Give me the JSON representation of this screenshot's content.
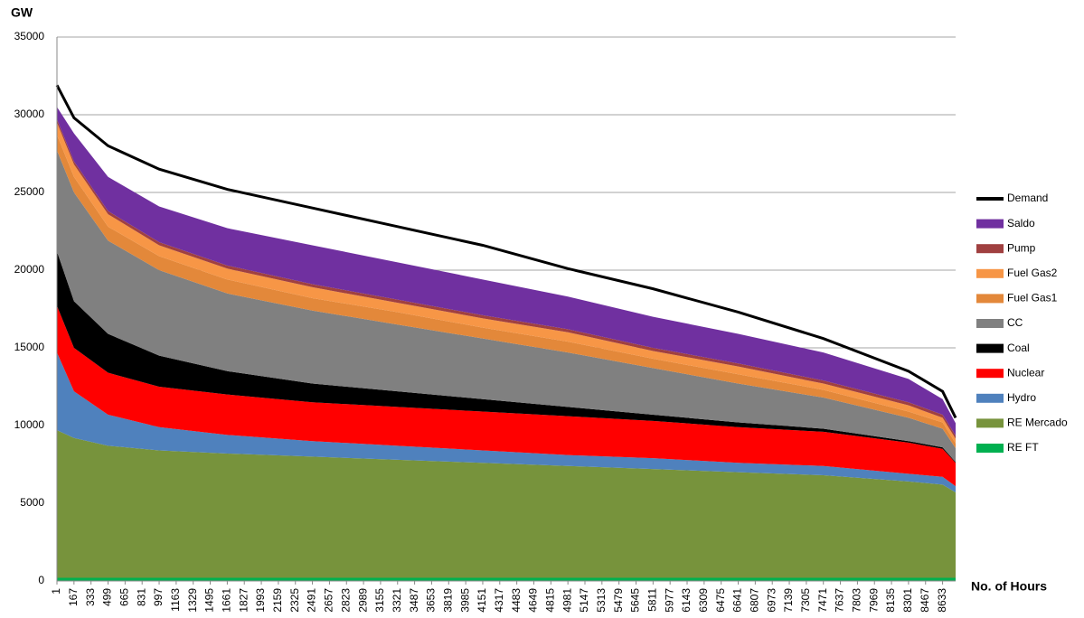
{
  "chart_data": {
    "type": "area",
    "stacked": true,
    "y_label": "GW",
    "x_label": "No. of Hours",
    "x": [
      1,
      167,
      499,
      997,
      1661,
      2491,
      3321,
      4151,
      4981,
      5811,
      6641,
      7471,
      8301,
      8633,
      8760
    ],
    "xlim": [
      1,
      8760
    ],
    "xticks": [
      1,
      167,
      333,
      499,
      665,
      831,
      997,
      1163,
      1329,
      1495,
      1661,
      1827,
      1993,
      2159,
      2325,
      2491,
      2657,
      2823,
      2989,
      3155,
      3321,
      3487,
      3653,
      3819,
      3985,
      4151,
      4317,
      4483,
      4649,
      4815,
      4981,
      5147,
      5313,
      5479,
      5645,
      5811,
      5977,
      6143,
      6309,
      6475,
      6641,
      6807,
      6973,
      7139,
      7305,
      7471,
      7637,
      7803,
      7969,
      8135,
      8301,
      8467,
      8633
    ],
    "ylim": [
      0,
      35000
    ],
    "yticks": [
      0,
      5000,
      10000,
      15000,
      20000,
      25000,
      30000,
      35000
    ],
    "grid": true,
    "legend": "right",
    "series": [
      {
        "name": "RE FT",
        "color": "#00b050",
        "values": [
          200,
          200,
          200,
          200,
          200,
          200,
          200,
          200,
          200,
          200,
          200,
          200,
          200,
          200,
          200
        ]
      },
      {
        "name": "RE Mercado",
        "color": "#77933c",
        "values": [
          9500,
          9000,
          8500,
          8200,
          8000,
          7800,
          7600,
          7400,
          7200,
          7000,
          6800,
          6600,
          6200,
          6000,
          5500
        ]
      },
      {
        "name": "Hydro",
        "color": "#4f81bd",
        "values": [
          5000,
          3000,
          2000,
          1500,
          1200,
          1000,
          900,
          800,
          700,
          700,
          600,
          600,
          500,
          500,
          400
        ]
      },
      {
        "name": "Nuclear",
        "color": "#ff0000",
        "values": [
          3000,
          2800,
          2700,
          2600,
          2600,
          2500,
          2500,
          2500,
          2500,
          2400,
          2300,
          2200,
          2000,
          1800,
          1500
        ]
      },
      {
        "name": "Coal",
        "color": "#000000",
        "values": [
          3500,
          3000,
          2500,
          2000,
          1500,
          1200,
          1000,
          800,
          600,
          400,
          300,
          200,
          100,
          100,
          50
        ]
      },
      {
        "name": "CC",
        "color": "#808080",
        "values": [
          6500,
          7000,
          6000,
          5500,
          5000,
          4700,
          4300,
          3900,
          3500,
          3000,
          2500,
          2000,
          1500,
          1200,
          900
        ]
      },
      {
        "name": "Fuel Gas1",
        "color": "#e3883a",
        "values": [
          1000,
          1000,
          900,
          900,
          900,
          800,
          800,
          700,
          700,
          600,
          600,
          500,
          400,
          400,
          300
        ]
      },
      {
        "name": "Fuel Gas2",
        "color": "#f79646",
        "values": [
          800,
          800,
          800,
          700,
          700,
          700,
          600,
          600,
          600,
          500,
          500,
          400,
          400,
          300,
          300
        ]
      },
      {
        "name": "Pump",
        "color": "#a04040",
        "values": [
          200,
          200,
          200,
          200,
          200,
          200,
          200,
          200,
          200,
          200,
          200,
          200,
          200,
          200,
          200
        ]
      },
      {
        "name": "Saldo",
        "color": "#7030a0",
        "values": [
          800,
          1800,
          2200,
          2300,
          2400,
          2500,
          2400,
          2300,
          2100,
          2000,
          1900,
          1800,
          1500,
          1000,
          800
        ]
      },
      {
        "name": "Demand",
        "type": "line",
        "color": "#000000",
        "values": [
          31900,
          29800,
          28000,
          26500,
          25200,
          24000,
          22800,
          21600,
          20100,
          18800,
          17300,
          15600,
          13500,
          12200,
          10500
        ]
      }
    ]
  }
}
